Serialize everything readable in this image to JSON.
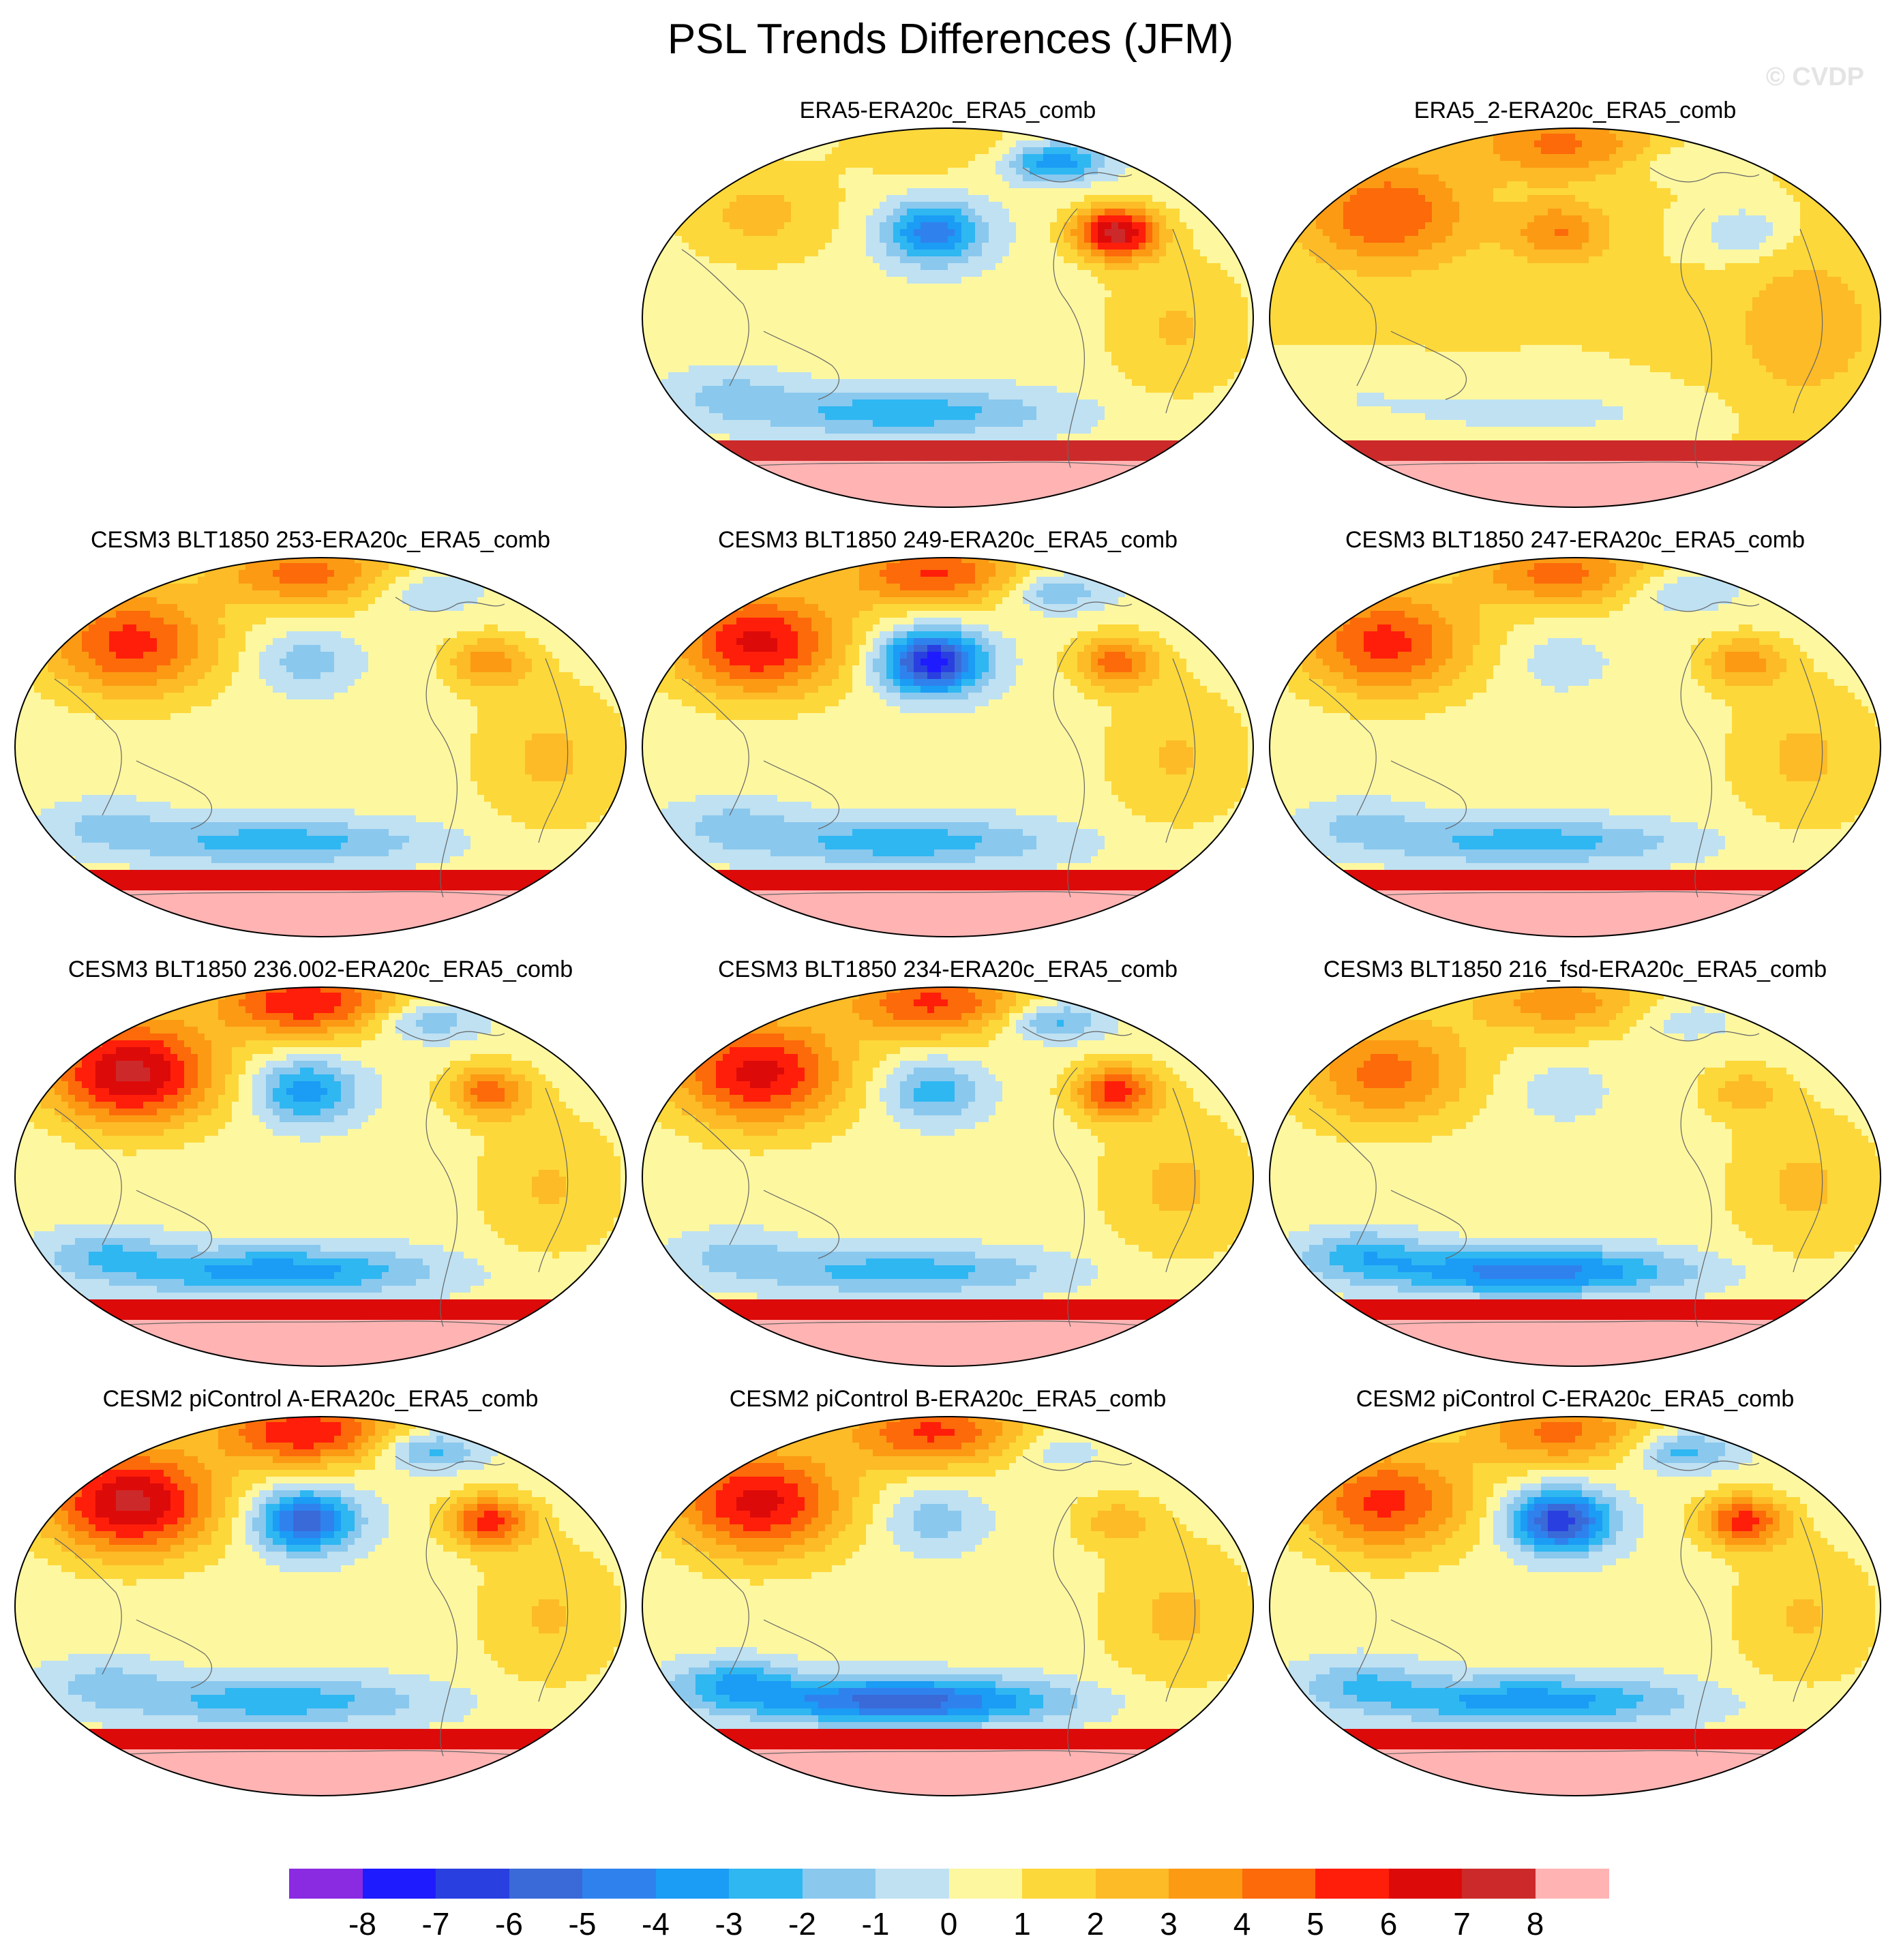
{
  "title": "PSL Trends Differences (JFM)",
  "watermark": "© CVDP",
  "panels": [
    {
      "id": "p01",
      "title": "ERA5-ERA20c_ERA5_comb",
      "pattern": {
        "aleut": -5,
        "natl": 7,
        "eurasia": 2,
        "tropics": 0.3,
        "so": -3,
        "ring": 7,
        "ant": 8
      }
    },
    {
      "id": "p02",
      "title": "ERA5_2-ERA20c_ERA5_comb",
      "pattern": {
        "aleut": 3,
        "natl": -2,
        "eurasia": 4,
        "tropics": 1,
        "so": -1.5,
        "ring": 7,
        "ant": 8
      }
    },
    {
      "id": "p10",
      "title": "CESM3 BLT1850 253-ERA20c_ERA5_comb",
      "pattern": {
        "aleut": -2,
        "natl": 3,
        "eurasia": 5,
        "tropics": 0.4,
        "so": -3,
        "ring": 6,
        "ant": 8
      }
    },
    {
      "id": "p11",
      "title": "CESM3 BLT1850 249-ERA20c_ERA5_comb",
      "pattern": {
        "aleut": -8,
        "natl": 4,
        "eurasia": 6,
        "tropics": 0.3,
        "so": -3,
        "ring": 6,
        "ant": 8
      }
    },
    {
      "id": "p12",
      "title": "CESM3 BLT1850 247-ERA20c_ERA5_comb",
      "pattern": {
        "aleut": -1,
        "natl": 3,
        "eurasia": 5,
        "tropics": 0.4,
        "so": -3,
        "ring": 6,
        "ant": 8
      }
    },
    {
      "id": "p20",
      "title": "CESM3 BLT1850 236.002-ERA20c_ERA5_comb",
      "pattern": {
        "aleut": -4,
        "natl": 4,
        "eurasia": 7,
        "tropics": 0.3,
        "so": -4,
        "ring": 6,
        "ant": 8
      }
    },
    {
      "id": "p21",
      "title": "CESM3 BLT1850 234-ERA20c_ERA5_comb",
      "pattern": {
        "aleut": -3,
        "natl": 5,
        "eurasia": 6,
        "tropics": 0.4,
        "so": -3,
        "ring": 6,
        "ant": 8
      }
    },
    {
      "id": "p22",
      "title": "CESM3 BLT1850 216_fsd-ERA20c_ERA5_comb",
      "pattern": {
        "aleut": -1,
        "natl": 2,
        "eurasia": 4,
        "tropics": 0.4,
        "so": -5,
        "ring": 6,
        "ant": 8
      }
    },
    {
      "id": "p30",
      "title": "CESM2 piControl A-ERA20c_ERA5_comb",
      "pattern": {
        "aleut": -6,
        "natl": 5,
        "eurasia": 7,
        "tropics": 0.3,
        "so": -3,
        "ring": 6,
        "ant": 8
      }
    },
    {
      "id": "p31",
      "title": "CESM2 piControl B-ERA20c_ERA5_comb",
      "pattern": {
        "aleut": -2,
        "natl": 2,
        "eurasia": 6,
        "tropics": 0.4,
        "so": -6,
        "ring": 6,
        "ant": 8
      }
    },
    {
      "id": "p32",
      "title": "CESM2 piControl C-ERA20c_ERA5_comb",
      "pattern": {
        "aleut": -7,
        "natl": 5,
        "eurasia": 5,
        "tropics": 0.3,
        "so": -4,
        "ring": 6,
        "ant": 8
      }
    }
  ],
  "colorbar": {
    "colors": [
      "#8a2be2",
      "#1f1bff",
      "#2a3fe0",
      "#3a6ad8",
      "#2f82ee",
      "#1b9cf5",
      "#2fb7f2",
      "#8ac8ee",
      "#bfe1f2",
      "#fdf7a0",
      "#fdd83a",
      "#fcbb27",
      "#fc9a14",
      "#fc6a0a",
      "#ff1e0a",
      "#dd0a0a",
      "#cc2a2a",
      "#ffb3b3"
    ],
    "labels": [
      "-8",
      "-7",
      "-6",
      "-5",
      "-4",
      "-3",
      "-2",
      "-1",
      "0",
      "1",
      "2",
      "3",
      "4",
      "5",
      "6",
      "7",
      "8"
    ]
  }
}
